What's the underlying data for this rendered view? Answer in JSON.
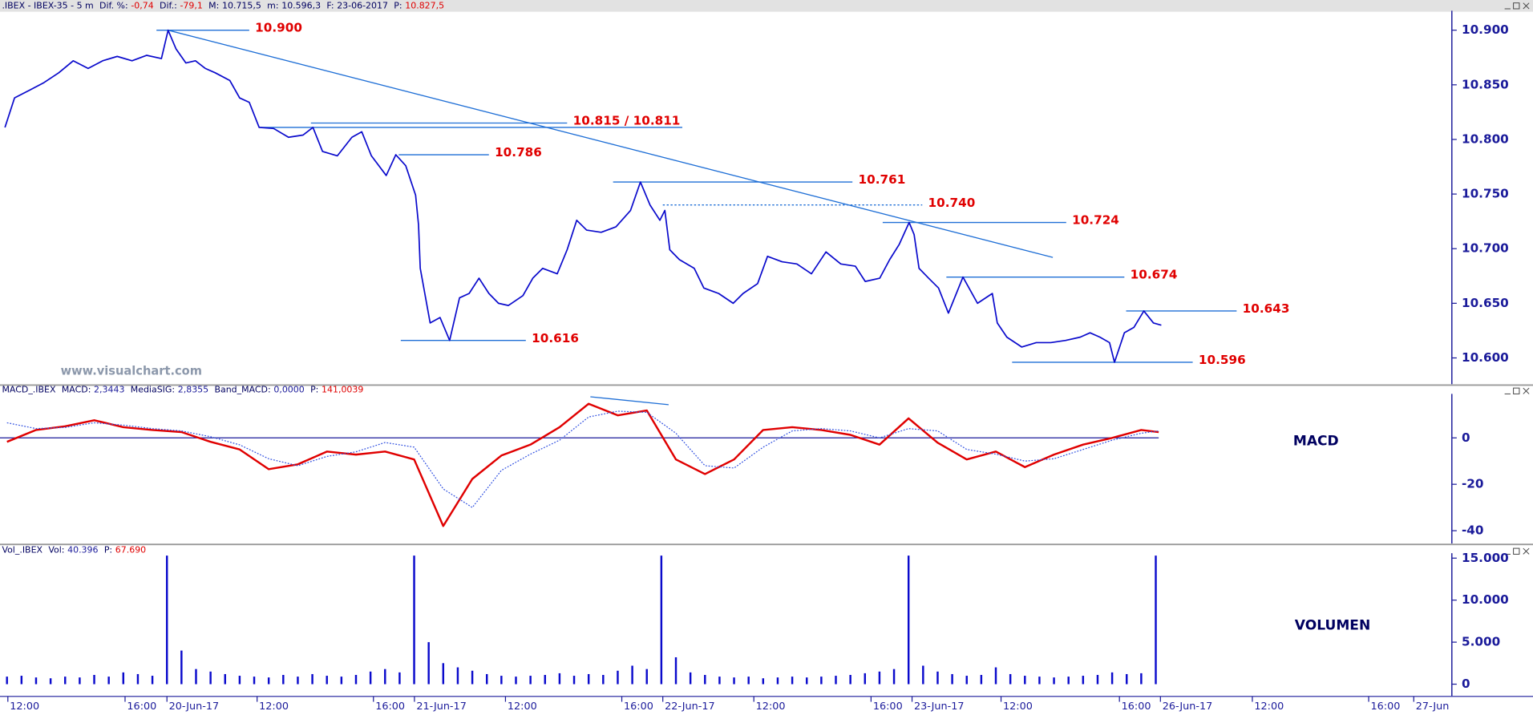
{
  "chart_data": [
    {
      "type": "line",
      "info": {
        "title": ".IBEX - IBEX-35 -  5 m",
        "fields": [
          {
            "name": "Dif. %:",
            "value": "-0,74",
            "color": "#e00000"
          },
          {
            "name": "Dif.:",
            "value": "-79,1",
            "color": "#e00000"
          },
          {
            "name": "M:",
            "value": "10.715,5",
            "color": "#000060"
          },
          {
            "name": "m:",
            "value": "10.596,3",
            "color": "#000060"
          },
          {
            "name": "F:",
            "value": "23-06-2017",
            "color": "#000060"
          },
          {
            "name": "P:",
            "value": "10.827,5",
            "color": "#e00000"
          }
        ]
      },
      "watermark": "www.visualchart.com",
      "x": [
        2.43,
        2.76,
        3.27,
        3.77,
        4.28,
        4.78,
        5.29,
        5.79,
        6.29,
        6.8,
        7.3,
        7.81,
        8.04,
        8.31,
        8.65,
        8.98,
        9.32,
        9.66,
        10.16,
        10.5,
        10.83,
        11.17,
        11.67,
        12.18,
        12.68,
        13.02,
        13.35,
        13.86,
        14.36,
        14.7,
        15.03,
        15.54,
        15.87,
        16.21,
        16.55,
        16.65,
        16.71,
        17.05,
        17.39,
        17.72,
        18.06,
        18.39,
        18.73,
        19.07,
        19.4,
        19.74,
        20.24,
        20.58,
        20.92,
        21.42,
        21.76,
        22.09,
        22.43,
        22.93,
        23.44,
        23.94,
        24.28,
        24.61,
        24.95,
        25.12,
        25.29,
        25.62,
        26.13,
        26.46,
        26.97,
        27.47,
        27.81,
        28.31,
        28.65,
        29.15,
        29.66,
        30.16,
        30.66,
        31.17,
        31.67,
        32.01,
        32.51,
        32.85,
        33.18,
        33.52,
        33.69,
        33.86,
        34.19,
        34.53,
        34.87,
        35.37,
        35.87,
        36.38,
        36.55,
        36.88,
        37.39,
        37.89,
        38.39,
        38.9,
        39.4,
        39.74,
        40.08,
        40.41,
        40.58,
        40.92,
        41.25,
        41.59,
        41.92,
        42.19
      ],
      "series": [
        {
          "color": "#0a0acc",
          "values": [
            10811,
            10838,
            10845,
            10852,
            10861,
            10872,
            10865,
            10872,
            10876,
            10872,
            10877,
            10874,
            10900,
            10883,
            10870,
            10872,
            10865,
            10861,
            10854,
            10838,
            10834,
            10811,
            10810,
            10802,
            10804,
            10811,
            10789,
            10785,
            10802,
            10807,
            10785,
            10767,
            10786,
            10776,
            10749,
            10722,
            10682,
            10632,
            10637,
            10616,
            10655,
            10659,
            10673,
            10659,
            10650,
            10648,
            10657,
            10673,
            10682,
            10677,
            10699,
            10726,
            10717,
            10715,
            10720,
            10735,
            10761,
            10740,
            10726,
            10735,
            10699,
            10690,
            10682,
            10664,
            10659,
            10650,
            10659,
            10668,
            10693,
            10688,
            10686,
            10677,
            10697,
            10686,
            10684,
            10670,
            10673,
            10690,
            10704,
            10724,
            10713,
            10682,
            10673,
            10664,
            10641,
            10674,
            10650,
            10659,
            10632,
            10619,
            10610,
            10614,
            10614,
            10616,
            10619,
            10623,
            10619,
            10614,
            10596,
            10623,
            10628,
            10643,
            10632,
            10630
          ]
        }
      ],
      "xlim": [
        2.26,
        52.18
      ],
      "ylim": [
        10576,
        10916
      ],
      "yticks": [
        {
          "value": 10600,
          "label": "10.600"
        },
        {
          "value": 10650,
          "label": "10.650"
        },
        {
          "value": 10700,
          "label": "10.700"
        },
        {
          "value": 10750,
          "label": "10.750"
        },
        {
          "value": 10800,
          "label": "10.800"
        },
        {
          "value": 10850,
          "label": "10.850"
        },
        {
          "value": 10900,
          "label": "10.900"
        }
      ],
      "level_color": "#1f6fd6",
      "levels": [
        {
          "label": "10.900",
          "lines": [
            {
              "value": 10900,
              "x": [
                7.64,
                10.83
              ]
            }
          ]
        },
        {
          "label": "10.815 / 10.811",
          "lines": [
            {
              "value": 10815,
              "x": [
                12.95,
                21.76
              ]
            },
            {
              "value": 10811,
              "x": [
                11.17,
                25.72
              ]
            }
          ]
        },
        {
          "label": "10.786",
          "lines": [
            {
              "value": 10786,
              "x": [
                15.97,
                19.07
              ]
            }
          ]
        },
        {
          "label": "10.761",
          "lines": [
            {
              "value": 10761,
              "x": [
                23.34,
                31.57
              ]
            }
          ]
        },
        {
          "label": "10.740",
          "style": "dotted",
          "lines": [
            {
              "value": 10740,
              "x": [
                25.05,
                33.97
              ]
            }
          ]
        },
        {
          "label": "10.724",
          "lines": [
            {
              "value": 10724,
              "x": [
                32.61,
                38.92
              ]
            }
          ]
        },
        {
          "label": "10.674",
          "lines": [
            {
              "value": 10674,
              "x": [
                34.8,
                40.92
              ]
            }
          ]
        },
        {
          "label": "10.643",
          "lines": [
            {
              "value": 10643,
              "x": [
                40.98,
                44.78
              ]
            }
          ]
        },
        {
          "label": "10.616",
          "lines": [
            {
              "value": 10616,
              "x": [
                16.04,
                20.34
              ]
            }
          ]
        },
        {
          "label": "10.596",
          "lines": [
            {
              "value": 10596,
              "x": [
                37.06,
                43.27
              ]
            }
          ]
        }
      ],
      "trendlines": [
        {
          "x": [
            8.04,
            38.46
          ],
          "values": [
            10900,
            10692
          ]
        }
      ]
    },
    {
      "type": "line",
      "info": {
        "title": "MACD_.IBEX",
        "fields": [
          {
            "name": "MACD:",
            "value": "2,3443",
            "color": "#1a1a9a"
          },
          {
            "name": "MediaSIG:",
            "value": "2,8355",
            "color": "#1a1a9a"
          },
          {
            "name": "Band_MACD:",
            "value": "0,0000",
            "color": "#1a1a9a"
          },
          {
            "name": "P:",
            "value": "141,0039",
            "color": "#e00000"
          }
        ]
      },
      "panel_label": "MACD",
      "x": [
        2.5,
        3.5,
        4.5,
        5.5,
        6.5,
        7.5,
        8.5,
        9.5,
        10.5,
        11.5,
        12.5,
        13.5,
        14.5,
        15.5,
        16.5,
        17.5,
        18.5,
        19.5,
        20.5,
        21.5,
        22.5,
        23.5,
        24.5,
        25.5,
        26.5,
        27.5,
        28.5,
        29.5,
        30.5,
        31.5,
        32.5,
        33.5,
        34.5,
        35.5,
        36.5,
        37.5,
        38.5,
        39.5,
        40.5,
        41.5,
        42.1
      ],
      "series": [
        {
          "color": "#e00000",
          "width": 2,
          "values": [
            -1.7,
            3.4,
            5,
            7.6,
            4.6,
            3.4,
            2.5,
            -1.7,
            -5,
            -13.5,
            -11.4,
            -5.9,
            -7.2,
            -5.9,
            -9.3,
            -38,
            -17.7,
            -7.6,
            -2.9,
            4.6,
            14.7,
            9.7,
            11.8,
            -9.3,
            -15.6,
            -9.3,
            3.4,
            4.6,
            3.4,
            1.3,
            -2.9,
            8.4,
            -2.1,
            -9.3,
            -5.9,
            -12.6,
            -7.2,
            -2.9,
            0,
            3.4,
            2.5
          ]
        },
        {
          "color": "#3050e0",
          "width": 1,
          "style": "dotted",
          "values": [
            6.5,
            4,
            4.5,
            6.5,
            5.5,
            4,
            3,
            0.5,
            -3,
            -9,
            -12,
            -8,
            -6,
            -2,
            -4,
            -22,
            -30,
            -14,
            -7,
            -1,
            9,
            11.5,
            11,
            2,
            -12,
            -13,
            -4,
            3,
            4,
            3,
            0,
            4,
            3,
            -5,
            -7,
            -10,
            -9,
            -5,
            -1,
            2,
            3
          ]
        }
      ],
      "zero_line": true,
      "xlim": [
        2.26,
        52.18
      ],
      "ylim": [
        -45.5,
        18.1
      ],
      "yticks": [
        -40,
        -20,
        0
      ],
      "level_color": "#1f6fd6",
      "trendlines": [
        {
          "x": [
            22.56,
            25.25
          ],
          "values": [
            17.7,
            14.3
          ]
        }
      ]
    },
    {
      "type": "bar",
      "info": {
        "title": "Vol_.IBEX",
        "fields": [
          {
            "name": "Vol:",
            "value": "40.396",
            "color": "#1a1a9a"
          },
          {
            "name": "P:",
            "value": "67.690",
            "color": "#e00000"
          }
        ]
      },
      "panel_label": "VOLUMEN",
      "color": "#0a0acc",
      "x": [
        2.5,
        3,
        3.5,
        4,
        4.5,
        5,
        5.5,
        6,
        6.5,
        7,
        7.5,
        8,
        8.5,
        9,
        9.5,
        10,
        10.5,
        11,
        11.5,
        12,
        12.5,
        13,
        13.5,
        14,
        14.5,
        15,
        15.5,
        16,
        16.5,
        17,
        17.5,
        18,
        18.5,
        19,
        19.5,
        20,
        20.5,
        21,
        21.5,
        22,
        22.5,
        23,
        23.5,
        24,
        24.5,
        25,
        25.5,
        26,
        26.5,
        27,
        27.5,
        28,
        28.5,
        29,
        29.5,
        30,
        30.5,
        31,
        31.5,
        32,
        32.5,
        33,
        33.5,
        34,
        34.5,
        35,
        35.5,
        36,
        36.5,
        37,
        37.5,
        38,
        38.5,
        39,
        39.5,
        40,
        40.5,
        41,
        41.5,
        42
      ],
      "values": [
        900,
        1000,
        800,
        700,
        900,
        800,
        1100,
        900,
        1400,
        1200,
        1000,
        15300,
        4000,
        1800,
        1500,
        1200,
        1000,
        900,
        800,
        1100,
        900,
        1200,
        1000,
        900,
        1100,
        1500,
        1800,
        1400,
        15300,
        5000,
        2500,
        2000,
        1600,
        1200,
        1000,
        900,
        1000,
        1100,
        1300,
        1000,
        1200,
        1100,
        1600,
        2200,
        1800,
        15300,
        3200,
        1400,
        1100,
        900,
        800,
        900,
        700,
        800,
        900,
        800,
        900,
        1000,
        1100,
        1300,
        1500,
        1800,
        15300,
        2200,
        1500,
        1200,
        1000,
        1100,
        2000,
        1200,
        1000,
        900,
        800,
        900,
        1000,
        1100,
        1400,
        1200,
        1300,
        15300
      ],
      "xlim": [
        2.26,
        52.18
      ],
      "ylim": [
        -1400,
        15350
      ],
      "yticks": [
        0,
        {
          "value": 5000,
          "label": "5.000"
        },
        {
          "value": 10000,
          "label": "10.000"
        },
        {
          "value": 15000,
          "label": "15.000"
        }
      ],
      "xticks": [
        {
          "value": 2.53,
          "label": "12:00"
        },
        {
          "value": 6.56,
          "label": "16:00"
        },
        {
          "value": 8.0,
          "label": "20-Jun-17"
        },
        {
          "value": 11.1,
          "label": "12:00"
        },
        {
          "value": 15.1,
          "label": "16:00"
        },
        {
          "value": 16.51,
          "label": "21-Jun-17"
        },
        {
          "value": 19.64,
          "label": "12:00"
        },
        {
          "value": 23.64,
          "label": "16:00"
        },
        {
          "value": 25.05,
          "label": "22-Jun-17"
        },
        {
          "value": 28.18,
          "label": "12:00"
        },
        {
          "value": 32.21,
          "label": "16:00"
        },
        {
          "value": 33.62,
          "label": "23-Jun-17"
        },
        {
          "value": 36.68,
          "label": "12:00"
        },
        {
          "value": 40.75,
          "label": "16:00"
        },
        {
          "value": 42.16,
          "label": "26-Jun-17"
        },
        {
          "value": 45.32,
          "label": "12:00"
        },
        {
          "value": 49.32,
          "label": "16:00"
        },
        {
          "value": 50.87,
          "label": "27-Jun"
        }
      ]
    }
  ]
}
